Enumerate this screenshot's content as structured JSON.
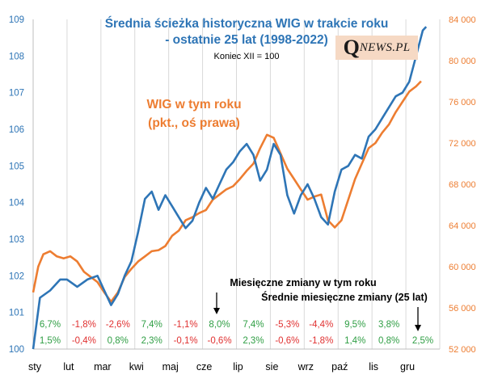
{
  "chart_data": {
    "type": "line",
    "title": "Średnia ścieżka historyczna  WIG w trakcie roku",
    "title_line2": "- ostatnie 25 lat (1998-2022)",
    "subtitle": "Koniec XII = 100",
    "orange_label_line1": "WIG w tym roku",
    "orange_label_line2": "(pkt., oś prawa)",
    "left_axis": {
      "ylim": [
        100,
        109
      ],
      "ticks": [
        "100",
        "101",
        "102",
        "103",
        "104",
        "105",
        "106",
        "107",
        "108",
        "109"
      ]
    },
    "right_axis": {
      "ylim": [
        52000,
        84000
      ],
      "ticks": [
        "52 000",
        "56 000",
        "60 000",
        "64 000",
        "68 000",
        "72 000",
        "76 000",
        "80 000",
        "84 000"
      ]
    },
    "months": [
      "sty",
      "lut",
      "mar",
      "kwi",
      "maj",
      "cze",
      "lip",
      "sie",
      "wrz",
      "paź",
      "lis",
      "gru"
    ],
    "series": [
      {
        "color": "#2e75b6",
        "axis": "left",
        "points": [
          [
            0.0,
            100.0
          ],
          [
            0.2,
            101.4
          ],
          [
            0.5,
            101.6
          ],
          [
            0.8,
            101.9
          ],
          [
            1.0,
            101.9
          ],
          [
            1.3,
            101.7
          ],
          [
            1.6,
            101.9
          ],
          [
            1.9,
            102.0
          ],
          [
            2.1,
            101.6
          ],
          [
            2.3,
            101.2
          ],
          [
            2.5,
            101.5
          ],
          [
            2.7,
            102.0
          ],
          [
            2.9,
            102.4
          ],
          [
            3.1,
            103.2
          ],
          [
            3.3,
            104.1
          ],
          [
            3.5,
            104.3
          ],
          [
            3.7,
            103.8
          ],
          [
            3.9,
            104.2
          ],
          [
            4.1,
            103.9
          ],
          [
            4.3,
            103.6
          ],
          [
            4.5,
            103.3
          ],
          [
            4.7,
            103.5
          ],
          [
            4.9,
            104.0
          ],
          [
            5.1,
            104.4
          ],
          [
            5.3,
            104.1
          ],
          [
            5.5,
            104.5
          ],
          [
            5.7,
            104.9
          ],
          [
            5.9,
            105.1
          ],
          [
            6.1,
            105.4
          ],
          [
            6.3,
            105.6
          ],
          [
            6.5,
            105.3
          ],
          [
            6.7,
            104.6
          ],
          [
            6.9,
            104.9
          ],
          [
            7.1,
            105.6
          ],
          [
            7.3,
            105.3
          ],
          [
            7.5,
            104.2
          ],
          [
            7.7,
            103.7
          ],
          [
            7.9,
            104.2
          ],
          [
            8.1,
            104.5
          ],
          [
            8.3,
            104.1
          ],
          [
            8.5,
            103.6
          ],
          [
            8.7,
            103.4
          ],
          [
            8.9,
            104.3
          ],
          [
            9.1,
            104.9
          ],
          [
            9.3,
            105.0
          ],
          [
            9.5,
            105.3
          ],
          [
            9.7,
            105.2
          ],
          [
            9.9,
            105.8
          ],
          [
            10.1,
            106.0
          ],
          [
            10.3,
            106.3
          ],
          [
            10.5,
            106.6
          ],
          [
            10.7,
            106.9
          ],
          [
            10.9,
            107.0
          ],
          [
            11.1,
            107.3
          ],
          [
            11.3,
            108.0
          ],
          [
            11.5,
            108.7
          ],
          [
            11.6,
            108.8
          ]
        ]
      },
      {
        "color": "#ed7d31",
        "axis": "right",
        "points": [
          [
            0.0,
            57.5
          ],
          [
            0.15,
            60.0
          ],
          [
            0.3,
            61.2
          ],
          [
            0.5,
            61.5
          ],
          [
            0.7,
            61.0
          ],
          [
            0.9,
            60.8
          ],
          [
            1.1,
            61.0
          ],
          [
            1.3,
            60.5
          ],
          [
            1.5,
            59.5
          ],
          [
            1.7,
            59.0
          ],
          [
            1.9,
            58.5
          ],
          [
            2.1,
            57.5
          ],
          [
            2.3,
            56.6
          ],
          [
            2.5,
            57.5
          ],
          [
            2.7,
            59.0
          ],
          [
            2.9,
            59.8
          ],
          [
            3.1,
            60.5
          ],
          [
            3.3,
            61.0
          ],
          [
            3.5,
            61.5
          ],
          [
            3.7,
            61.6
          ],
          [
            3.9,
            62.0
          ],
          [
            4.1,
            63.0
          ],
          [
            4.3,
            63.5
          ],
          [
            4.5,
            64.5
          ],
          [
            4.7,
            64.8
          ],
          [
            4.9,
            65.2
          ],
          [
            5.1,
            65.5
          ],
          [
            5.3,
            66.5
          ],
          [
            5.5,
            67.0
          ],
          [
            5.7,
            67.5
          ],
          [
            5.9,
            67.8
          ],
          [
            6.1,
            68.5
          ],
          [
            6.3,
            69.3
          ],
          [
            6.5,
            70.0
          ],
          [
            6.7,
            71.5
          ],
          [
            6.9,
            72.8
          ],
          [
            7.1,
            72.5
          ],
          [
            7.3,
            71.0
          ],
          [
            7.5,
            69.5
          ],
          [
            7.7,
            68.5
          ],
          [
            7.9,
            67.5
          ],
          [
            8.1,
            66.5
          ],
          [
            8.3,
            66.8
          ],
          [
            8.5,
            67.0
          ],
          [
            8.7,
            64.5
          ],
          [
            8.9,
            63.8
          ],
          [
            9.1,
            64.5
          ],
          [
            9.3,
            66.5
          ],
          [
            9.5,
            68.5
          ],
          [
            9.7,
            70.0
          ],
          [
            9.9,
            71.5
          ],
          [
            10.1,
            72.0
          ],
          [
            10.3,
            73.0
          ],
          [
            10.5,
            73.8
          ],
          [
            10.7,
            75.0
          ],
          [
            10.9,
            76.0
          ],
          [
            11.1,
            77.0
          ],
          [
            11.3,
            77.5
          ],
          [
            11.45,
            78.0
          ]
        ]
      }
    ],
    "table_labels": {
      "current": "Miesięczne zmiany w tym roku",
      "average": "Średnie miesięczne zmiany (25 lat)"
    },
    "monthly_current": [
      "6,7%",
      "-1,8%",
      "-2,6%",
      "7,4%",
      "-1,1%",
      "8,0%",
      "7,4%",
      "-5,3%",
      "-4,4%",
      "9,5%",
      "3,8%",
      ""
    ],
    "monthly_average": [
      "1,5%",
      "-0,4%",
      "0,8%",
      "2,3%",
      "-0,1%",
      "-0,6%",
      "2,3%",
      "-0,6%",
      "-1,8%",
      "1,4%",
      "0,8%",
      "2,5%"
    ],
    "grid": true
  },
  "logo": {
    "big": "Q",
    "rest": "NEWS.PL"
  },
  "colors": {
    "blue": "#2e75b6",
    "orange": "#ed7d31",
    "green": "#2f9e44",
    "red": "#e03131"
  }
}
